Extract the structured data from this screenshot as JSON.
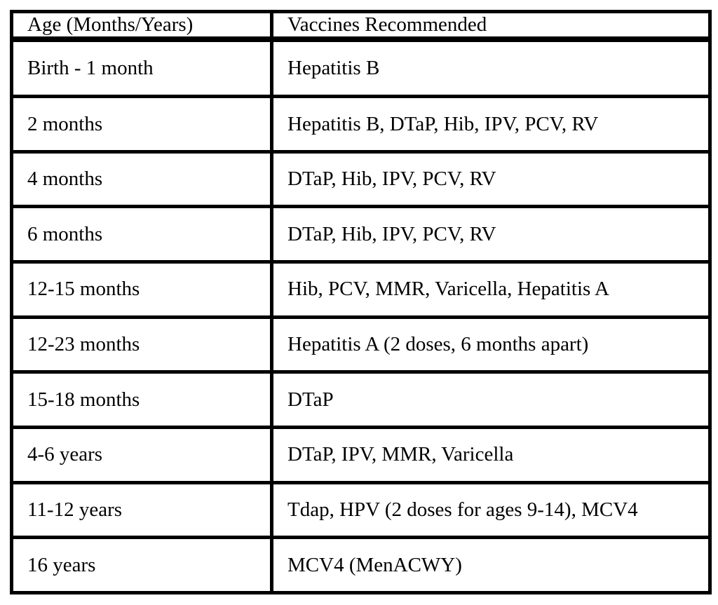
{
  "table": {
    "columns": [
      "Age (Months/Years)",
      "Vaccines Recommended"
    ],
    "rows": [
      {
        "age": "Birth - 1 month",
        "vaccines": "Hepatitis B"
      },
      {
        "age": "2 months",
        "vaccines": "Hepatitis B, DTaP, Hib, IPV, PCV, RV"
      },
      {
        "age": "4 months",
        "vaccines": "DTaP, Hib, IPV, PCV, RV"
      },
      {
        "age": "6 months",
        "vaccines": "DTaP, Hib, IPV, PCV, RV"
      },
      {
        "age": "12-15 months",
        "vaccines": "Hib, PCV, MMR, Varicella, Hepatitis A"
      },
      {
        "age": "12-23 months",
        "vaccines": "Hepatitis A (2 doses, 6 months apart)"
      },
      {
        "age": "15-18 months",
        "vaccines": "DTaP"
      },
      {
        "age": "4-6 years",
        "vaccines": "DTaP, IPV, MMR, Varicella"
      },
      {
        "age": "11-12 years",
        "vaccines": "Tdap, HPV (2 doses for ages 9-14), MCV4"
      },
      {
        "age": "16 years",
        "vaccines": "MCV4 (MenACWY)"
      }
    ],
    "colors": {
      "border": "#000000",
      "text": "#000000",
      "background": "#ffffff"
    }
  }
}
